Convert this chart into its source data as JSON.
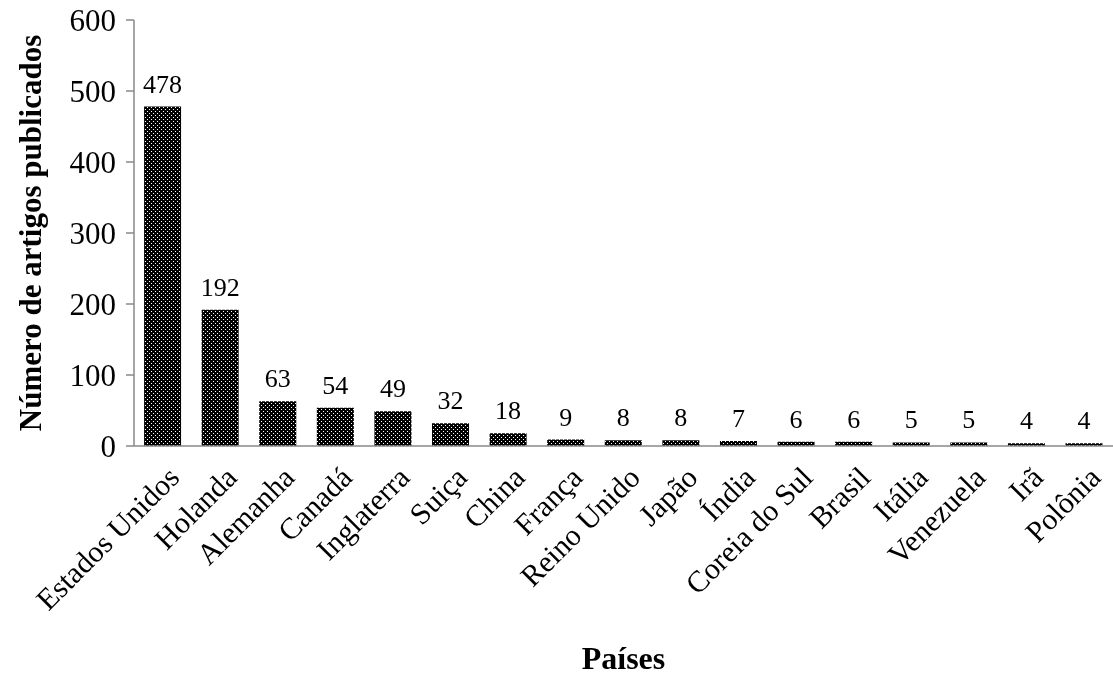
{
  "chart_data": {
    "type": "bar",
    "xlabel": "Países",
    "ylabel": "Número de artigos publicados",
    "categories": [
      "Estados Unidos",
      "Holanda",
      "Alemanha",
      "Canadá",
      "Inglaterra",
      "Suiça",
      "China",
      "França",
      "Reino Unido",
      "Japão",
      "Índia",
      "Coreia do Sul",
      "Brasil",
      "Itália",
      "Venezuela",
      "Irã",
      "Polônia"
    ],
    "values": [
      478,
      192,
      63,
      54,
      49,
      32,
      18,
      9,
      8,
      8,
      7,
      6,
      6,
      5,
      5,
      4,
      4
    ],
    "color": "#000000",
    "ylim": [
      0,
      600
    ],
    "yticks": [
      0,
      100,
      200,
      300,
      400,
      500,
      600
    ],
    "data_labels": true
  }
}
